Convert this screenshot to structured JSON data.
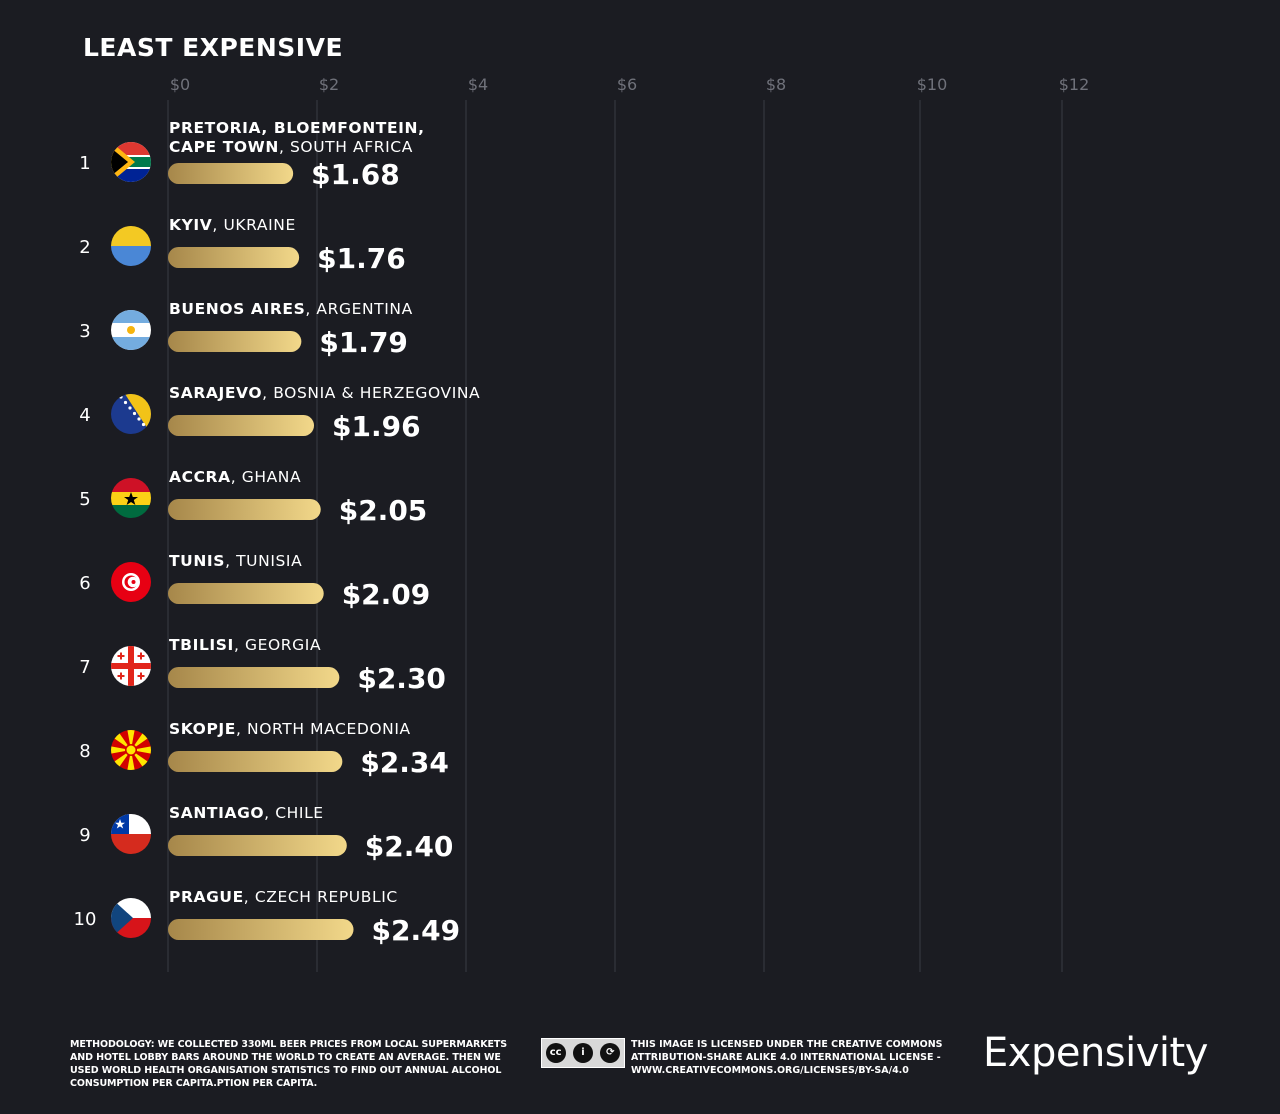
{
  "chart_data": {
    "type": "bar",
    "orientation": "horizontal",
    "title": "LEAST EXPENSIVE",
    "xlim": [
      0,
      12
    ],
    "xticks": [
      0,
      2,
      4,
      6,
      8,
      10,
      12
    ],
    "tick_labels": [
      "$0",
      "$2",
      "$4",
      "$6",
      "$8",
      "$10",
      "$12"
    ],
    "items": [
      {
        "rank": "1",
        "city_lines": [
          [
            {
              "t": "PRETORIA, BLOEMFONTEIN,",
              "b": true
            }
          ],
          [
            {
              "t": "CAPE TOWN",
              "b": true
            },
            {
              "t": ", SOUTH AFRICA",
              "b": false
            }
          ]
        ],
        "country": "SOUTH AFRICA",
        "value": 1.68,
        "label": "$1.68",
        "flag": "south-africa"
      },
      {
        "rank": "2",
        "city_lines": [
          [
            {
              "t": "KYIV",
              "b": true
            },
            {
              "t": ", UKRAINE",
              "b": false
            }
          ]
        ],
        "country": "UKRAINE",
        "value": 1.76,
        "label": "$1.76",
        "flag": "ukraine"
      },
      {
        "rank": "3",
        "city_lines": [
          [
            {
              "t": "BUENOS AIRES",
              "b": true
            },
            {
              "t": ", ARGENTINA",
              "b": false
            }
          ]
        ],
        "country": "ARGENTINA",
        "value": 1.79,
        "label": "$1.79",
        "flag": "argentina"
      },
      {
        "rank": "4",
        "city_lines": [
          [
            {
              "t": "SARAJEVO",
              "b": true
            },
            {
              "t": ", BOSNIA & HERZEGOVINA",
              "b": false
            }
          ]
        ],
        "country": "BOSNIA & HERZEGOVINA",
        "value": 1.96,
        "label": "$1.96",
        "flag": "bosnia"
      },
      {
        "rank": "5",
        "city_lines": [
          [
            {
              "t": "ACCRA",
              "b": true
            },
            {
              "t": ", GHANA",
              "b": false
            }
          ]
        ],
        "country": "GHANA",
        "value": 2.05,
        "label": "$2.05",
        "flag": "ghana"
      },
      {
        "rank": "6",
        "city_lines": [
          [
            {
              "t": "TUNIS",
              "b": true
            },
            {
              "t": ", TUNISIA",
              "b": false
            }
          ]
        ],
        "country": "TUNISIA",
        "value": 2.09,
        "label": "$2.09",
        "flag": "tunisia"
      },
      {
        "rank": "7",
        "city_lines": [
          [
            {
              "t": "TBILISI",
              "b": true
            },
            {
              "t": ", GEORGIA",
              "b": false
            }
          ]
        ],
        "country": "GEORGIA",
        "value": 2.3,
        "label": "$2.30",
        "flag": "georgia"
      },
      {
        "rank": "8",
        "city_lines": [
          [
            {
              "t": "SKOPJE",
              "b": true
            },
            {
              "t": ", NORTH MACEDONIA",
              "b": false
            }
          ]
        ],
        "country": "NORTH MACEDONIA",
        "value": 2.34,
        "label": "$2.34",
        "flag": "macedonia"
      },
      {
        "rank": "9",
        "city_lines": [
          [
            {
              "t": "SANTIAGO",
              "b": true
            },
            {
              "t": ", CHILE",
              "b": false
            }
          ]
        ],
        "country": "CHILE",
        "value": 2.4,
        "label": "$2.40",
        "flag": "chile"
      },
      {
        "rank": "10",
        "city_lines": [
          [
            {
              "t": "PRAGUE",
              "b": true
            },
            {
              "t": ", CZECH REPUBLIC",
              "b": false
            }
          ]
        ],
        "country": "CZECH REPUBLIC",
        "value": 2.49,
        "label": "$2.49",
        "flag": "czech"
      }
    ]
  },
  "colors": {
    "background": "#1b1c22",
    "gridline": "#3a3c44",
    "bar_start": "#a6874a",
    "bar_end": "#f2d88a"
  },
  "footer": {
    "methodology_label": "METHODOLOGY:",
    "methodology_text_1": " WE COLLECTED 330ML BEER PRICES FROM LOCAL SUPERMARKETS AND HOTEL LOBBY BARS AROUND THE WORLD TO CREATE AN AVERAGE. THEN WE USED ",
    "methodology_bold": "WORLD HEALTH ORGANISATION",
    "methodology_text_2": " STATISTICS TO FIND OUT ANNUAL ALCOHOL CONSUMPTION PER CAPITA.PTION PER CAPITA.",
    "cc_icons": [
      "cc",
      "by",
      "sa"
    ],
    "license_text": "THIS IMAGE IS LICENSED UNDER THE CREATIVE COMMONS ATTRIBUTION-SHARE ALIKE 4.0 INTERNATIONAL LICENSE - WWW.CREATIVECOMMONS.ORG/LICENSES/BY-SA/4.0",
    "brand": "Expensivity"
  }
}
